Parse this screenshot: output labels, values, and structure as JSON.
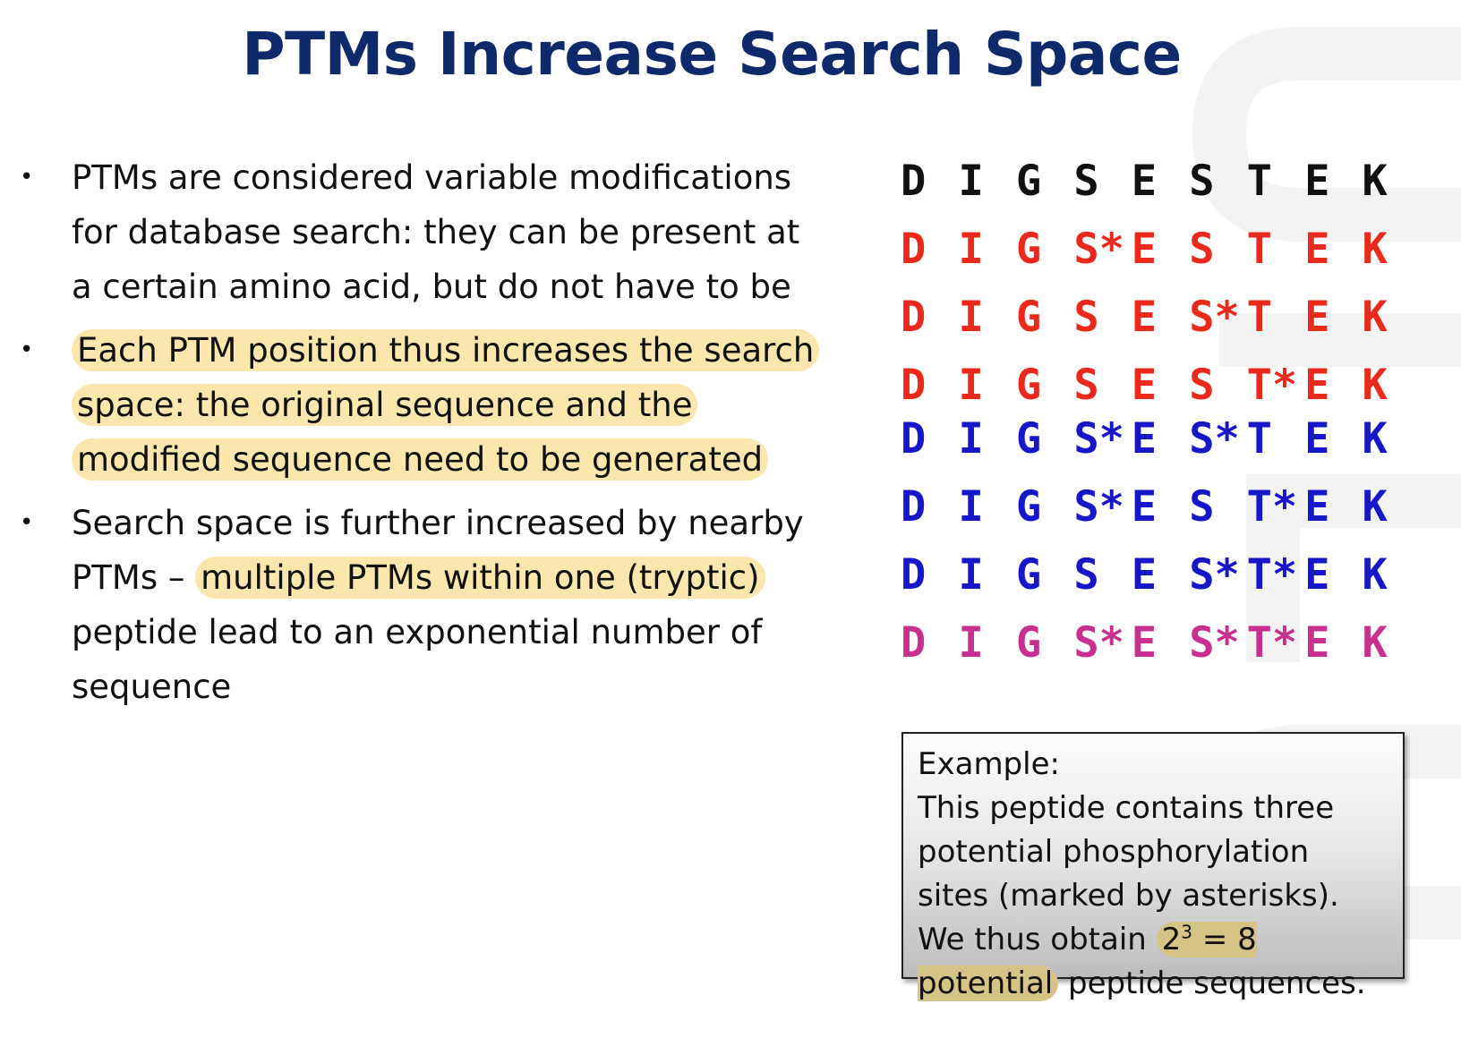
{
  "title": "PTMs Increase Search Space",
  "bullets": [
    {
      "text_before": "PTMs are considered variable modifications for database search: they can be present at a certain amino acid, but do not have to be",
      "highlight": "",
      "text_after": ""
    },
    {
      "text_before": "",
      "highlight": "Each PTM position thus increases the search space: the original sequence and the modified sequence need to be generated",
      "text_after": ""
    },
    {
      "text_before": "Search space is further increased by nearby PTMs – ",
      "highlight": "multiple PTMs within one (tryptic)",
      "text_after": " peptide lead to an exponential number of sequence"
    }
  ],
  "bullet_symbol": "•",
  "colors": {
    "title": "#0e2a6b",
    "highlight": "#fbe7ad",
    "highlight_dark": "#d5c488",
    "seq_black": "#111111",
    "seq_red": "#e8291c",
    "seq_blue": "#1717c8",
    "seq_magenta": "#c8308e"
  },
  "sequences": [
    {
      "color": "seq_black",
      "cells": [
        "D",
        "I",
        "G",
        "S",
        "E",
        "S",
        "T",
        "E",
        "K"
      ]
    },
    {
      "color": "seq_red",
      "cells": [
        "D",
        "I",
        "G",
        "S*",
        "E",
        "S",
        "T",
        "E",
        "K"
      ]
    },
    {
      "color": "seq_red",
      "cells": [
        "D",
        "I",
        "G",
        "S",
        "E",
        "S*",
        "T",
        "E",
        "K"
      ]
    },
    {
      "color": "seq_red",
      "cells": [
        "D",
        "I",
        "G",
        "S",
        "E",
        "S",
        "T*",
        "E",
        "K"
      ]
    },
    {
      "color": "seq_blue",
      "cells": [
        "D",
        "I",
        "G",
        "S*",
        "E",
        "S*",
        "T",
        "E",
        "K"
      ]
    },
    {
      "color": "seq_blue",
      "cells": [
        "D",
        "I",
        "G",
        "S*",
        "E",
        "S",
        "T*",
        "E",
        "K"
      ]
    },
    {
      "color": "seq_blue",
      "cells": [
        "D",
        "I",
        "G",
        "S",
        "E",
        "S*",
        "T*",
        "E",
        "K"
      ]
    },
    {
      "color": "seq_magenta",
      "cells": [
        "D",
        "I",
        "G",
        "S*",
        "E",
        "S*",
        "T*",
        "E",
        "K"
      ]
    }
  ],
  "example": {
    "heading": "Example:",
    "text_before": "This peptide contains three potential phosphorylation sites (marked by asterisks). We thus obtain ",
    "highlight_base": "2",
    "highlight_exp": "3",
    "highlight_rest": " = 8 potential",
    "text_after": " peptide sequences."
  }
}
